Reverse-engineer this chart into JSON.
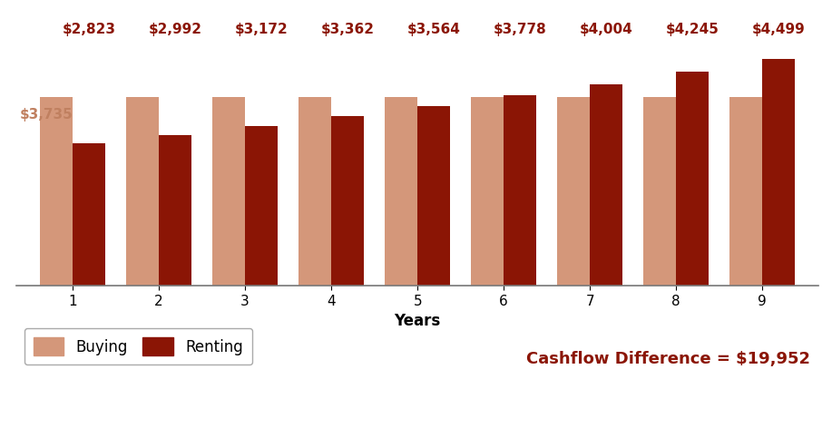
{
  "years": [
    1,
    2,
    3,
    4,
    5,
    6,
    7,
    8,
    9
  ],
  "buying_values": [
    3735,
    3735,
    3735,
    3735,
    3735,
    3735,
    3735,
    3735,
    3735
  ],
  "renting_values": [
    2823,
    2992,
    3172,
    3362,
    3564,
    3778,
    4004,
    4245,
    4499
  ],
  "renting_labels": [
    "$2,823",
    "$2,992",
    "$3,172",
    "$3,362",
    "$3,564",
    "$3,778",
    "$4,004",
    "$4,245",
    "$4,499"
  ],
  "buying_label_val": "$3,735",
  "buying_color": "#D4977A",
  "renting_color": "#8B1505",
  "renting_label_color": "#8B1505",
  "buying_label_color": "#C08060",
  "buying_legend": "Buying",
  "renting_legend": "Renting",
  "cashflow_text": "Cashflow Difference = $19,952",
  "xlabel": "Years",
  "background_color": "#FFFFFF",
  "ylim": [
    0,
    5400
  ],
  "bar_width": 0.38,
  "axis_label_fontsize": 12,
  "tick_fontsize": 11,
  "legend_fontsize": 12,
  "annotation_fontsize": 11,
  "buying_annotation_fontsize": 11
}
